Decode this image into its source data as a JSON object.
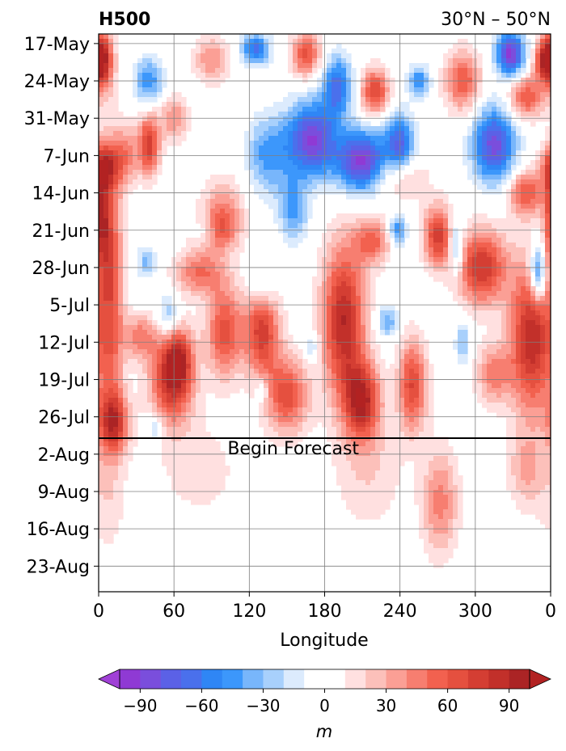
{
  "chart_data": {
    "type": "heatmap",
    "title_left": "H500",
    "title_right": "30°N – 50°N",
    "xlabel": "Longitude",
    "x_ticks": [
      "0",
      "60",
      "120",
      "180",
      "240",
      "300",
      "0"
    ],
    "x_tick_values": [
      0,
      60,
      120,
      180,
      240,
      300,
      360
    ],
    "y_ticks": [
      "17-May",
      "24-May",
      "31-May",
      "7-Jun",
      "14-Jun",
      "21-Jun",
      "28-Jun",
      "5-Jul",
      "12-Jul",
      "19-Jul",
      "26-Jul",
      "2-Aug",
      "9-Aug",
      "16-Aug",
      "23-Aug"
    ],
    "annotation": "Begin Forecast",
    "forecast_start": "30-Jul",
    "colorbar": {
      "label": "m",
      "levels": [
        -100,
        -90,
        -80,
        -70,
        -60,
        -50,
        -40,
        -30,
        -20,
        -10,
        10,
        20,
        30,
        40,
        50,
        60,
        70,
        80,
        90,
        100
      ],
      "ticks": [
        "−90",
        "−60",
        "−30",
        "0",
        "30",
        "60",
        "90"
      ],
      "tick_values": [
        -90,
        -60,
        -30,
        0,
        30,
        60,
        90
      ],
      "extend": "both",
      "colors": [
        "#8f3ad4",
        "#7a4edc",
        "#5b61e6",
        "#4a70ec",
        "#2f86f5",
        "#3c97fb",
        "#78b6fb",
        "#a8d0fc",
        "#dcebfd",
        "#ffffff",
        "#ffe0e0",
        "#fcc0ba",
        "#fb9f95",
        "#f77e70",
        "#f2614f",
        "#e5503f",
        "#d43e33",
        "#c2302a",
        "#ab2425"
      ],
      "under_color": "#a040d6",
      "over_color": "#b22222"
    },
    "blobs": [
      {
        "lon": 3,
        "date": "20-May",
        "value": 85,
        "lon_width": 6,
        "days": 4
      },
      {
        "lon": 4,
        "date": "9-Jun",
        "value": 70,
        "lon_width": 8,
        "days": 3
      },
      {
        "lon": 2,
        "date": "19-Jun",
        "value": 65,
        "lon_width": 5,
        "days": 7
      },
      {
        "lon": 10,
        "date": "2-Jul",
        "value": 60,
        "lon_width": 7,
        "days": 18
      },
      {
        "lon": 12,
        "date": "27-Jul",
        "value": 70,
        "lon_width": 9,
        "days": 4
      },
      {
        "lon": 22,
        "date": "7-Jun",
        "value": 40,
        "lon_width": 7,
        "days": 4
      },
      {
        "lon": 40,
        "date": "5-Jun",
        "value": 75,
        "lon_width": 6,
        "days": 4
      },
      {
        "lon": 58,
        "date": "19-Jul",
        "value": 80,
        "lon_width": 12,
        "days": 6
      },
      {
        "lon": 64,
        "date": "15-Jul",
        "value": 50,
        "lon_width": 8,
        "days": 4
      },
      {
        "lon": 33,
        "date": "11-Jul",
        "value": 45,
        "lon_width": 9,
        "days": 3
      },
      {
        "lon": 90,
        "date": "20-May",
        "value": 40,
        "lon_width": 10,
        "days": 3
      },
      {
        "lon": 100,
        "date": "10-Jul",
        "value": 65,
        "lon_width": 10,
        "days": 6
      },
      {
        "lon": 95,
        "date": "21-Jun",
        "value": 50,
        "lon_width": 12,
        "days": 3
      },
      {
        "lon": 80,
        "date": "29-Jun",
        "value": 50,
        "lon_width": 14,
        "days": 3
      },
      {
        "lon": 130,
        "date": "10-Jul",
        "value": 75,
        "lon_width": 10,
        "days": 6
      },
      {
        "lon": 150,
        "date": "22-Jul",
        "value": 65,
        "lon_width": 12,
        "days": 5
      },
      {
        "lon": 165,
        "date": "19-May",
        "value": 65,
        "lon_width": 8,
        "days": 3
      },
      {
        "lon": 195,
        "date": "8-Jul",
        "value": 90,
        "lon_width": 12,
        "days": 10
      },
      {
        "lon": 210,
        "date": "23-Jul",
        "value": 85,
        "lon_width": 10,
        "days": 5
      },
      {
        "lon": 220,
        "date": "26-May",
        "value": 70,
        "lon_width": 8,
        "days": 3
      },
      {
        "lon": 218,
        "date": "23-Jun",
        "value": 55,
        "lon_width": 10,
        "days": 3
      },
      {
        "lon": 250,
        "date": "20-Jul",
        "value": 70,
        "lon_width": 8,
        "days": 6
      },
      {
        "lon": 270,
        "date": "22-Jun",
        "value": 75,
        "lon_width": 8,
        "days": 4
      },
      {
        "lon": 290,
        "date": "24-May",
        "value": 60,
        "lon_width": 10,
        "days": 4
      },
      {
        "lon": 305,
        "date": "28-Jun",
        "value": 80,
        "lon_width": 14,
        "days": 5
      },
      {
        "lon": 340,
        "date": "14-Jun",
        "value": 60,
        "lon_width": 10,
        "days": 3
      },
      {
        "lon": 345,
        "date": "11-Jul",
        "value": 90,
        "lon_width": 12,
        "days": 10
      },
      {
        "lon": 340,
        "date": "27-May",
        "value": 60,
        "lon_width": 10,
        "days": 3
      },
      {
        "lon": 355,
        "date": "20-May",
        "value": 70,
        "lon_width": 6,
        "days": 3
      },
      {
        "lon": 240,
        "date": "11-Jun",
        "value": 35,
        "lon_width": 14,
        "days": 3
      },
      {
        "lon": 100,
        "date": "16-Jun",
        "value": 30,
        "lon_width": 12,
        "days": 4
      },
      {
        "lon": 60,
        "date": "31-May",
        "value": 40,
        "lon_width": 8,
        "days": 3
      },
      {
        "lon": 315,
        "date": "18-Jul",
        "value": 45,
        "lon_width": 10,
        "days": 4
      },
      {
        "lon": 40,
        "date": "24-May",
        "value": -50,
        "lon_width": 8,
        "days": 3
      },
      {
        "lon": 85,
        "date": "21-Jun",
        "value": -30,
        "lon_width": 6,
        "days": 2
      },
      {
        "lon": 38,
        "date": "27-Jun",
        "value": -35,
        "lon_width": 5,
        "days": 2
      },
      {
        "lon": 55,
        "date": "7-Jul",
        "value": -35,
        "lon_width": 6,
        "days": 3
      },
      {
        "lon": 125,
        "date": "18-May",
        "value": -65,
        "lon_width": 8,
        "days": 2
      },
      {
        "lon": 170,
        "date": "4-Jun",
        "value": -90,
        "lon_width": 14,
        "days": 5
      },
      {
        "lon": 210,
        "date": "8-Jun",
        "value": -95,
        "lon_width": 14,
        "days": 4
      },
      {
        "lon": 190,
        "date": "25-May",
        "value": -65,
        "lon_width": 8,
        "days": 4
      },
      {
        "lon": 135,
        "date": "7-Jun",
        "value": -45,
        "lon_width": 12,
        "days": 5
      },
      {
        "lon": 155,
        "date": "17-Jun",
        "value": -45,
        "lon_width": 8,
        "days": 4
      },
      {
        "lon": 240,
        "date": "5-Jun",
        "value": -70,
        "lon_width": 8,
        "days": 4
      },
      {
        "lon": 255,
        "date": "24-May",
        "value": -50,
        "lon_width": 6,
        "days": 2
      },
      {
        "lon": 315,
        "date": "5-Jun",
        "value": -85,
        "lon_width": 12,
        "days": 5
      },
      {
        "lon": 328,
        "date": "19-May",
        "value": -95,
        "lon_width": 8,
        "days": 3
      },
      {
        "lon": 350,
        "date": "29-Jun",
        "value": -75,
        "lon_width": 5,
        "days": 4
      },
      {
        "lon": 285,
        "date": "24-Jun",
        "value": -50,
        "lon_width": 4,
        "days": 4
      },
      {
        "lon": 238,
        "date": "21-Jun",
        "value": -50,
        "lon_width": 5,
        "days": 2
      },
      {
        "lon": 230,
        "date": "8-Jul",
        "value": -40,
        "lon_width": 6,
        "days": 2
      },
      {
        "lon": 290,
        "date": "12-Jul",
        "value": -35,
        "lon_width": 4,
        "days": 3
      },
      {
        "lon": 170,
        "date": "13-Jul",
        "value": -30,
        "lon_width": 4,
        "days": 2
      },
      {
        "lon": 130,
        "date": "2-Jul",
        "value": -25,
        "lon_width": 8,
        "days": 3
      },
      {
        "lon": 45,
        "date": "28-Jul",
        "value": -30,
        "lon_width": 5,
        "days": 2
      },
      {
        "lon": 130,
        "date": "21-Jul",
        "value": -25,
        "lon_width": 4,
        "days": 2
      },
      {
        "lon": 272,
        "date": "11-Aug",
        "value": 45,
        "lon_width": 10,
        "days": 7
      },
      {
        "lon": 340,
        "date": "5-Aug",
        "value": 30,
        "lon_width": 10,
        "days": 5
      },
      {
        "lon": 215,
        "date": "5-Aug",
        "value": 20,
        "lon_width": 20,
        "days": 8
      },
      {
        "lon": 80,
        "date": "5-Aug",
        "value": 15,
        "lon_width": 25,
        "days": 7
      },
      {
        "lon": 5,
        "date": "10-Aug",
        "value": 15,
        "lon_width": 12,
        "days": 8
      }
    ]
  }
}
